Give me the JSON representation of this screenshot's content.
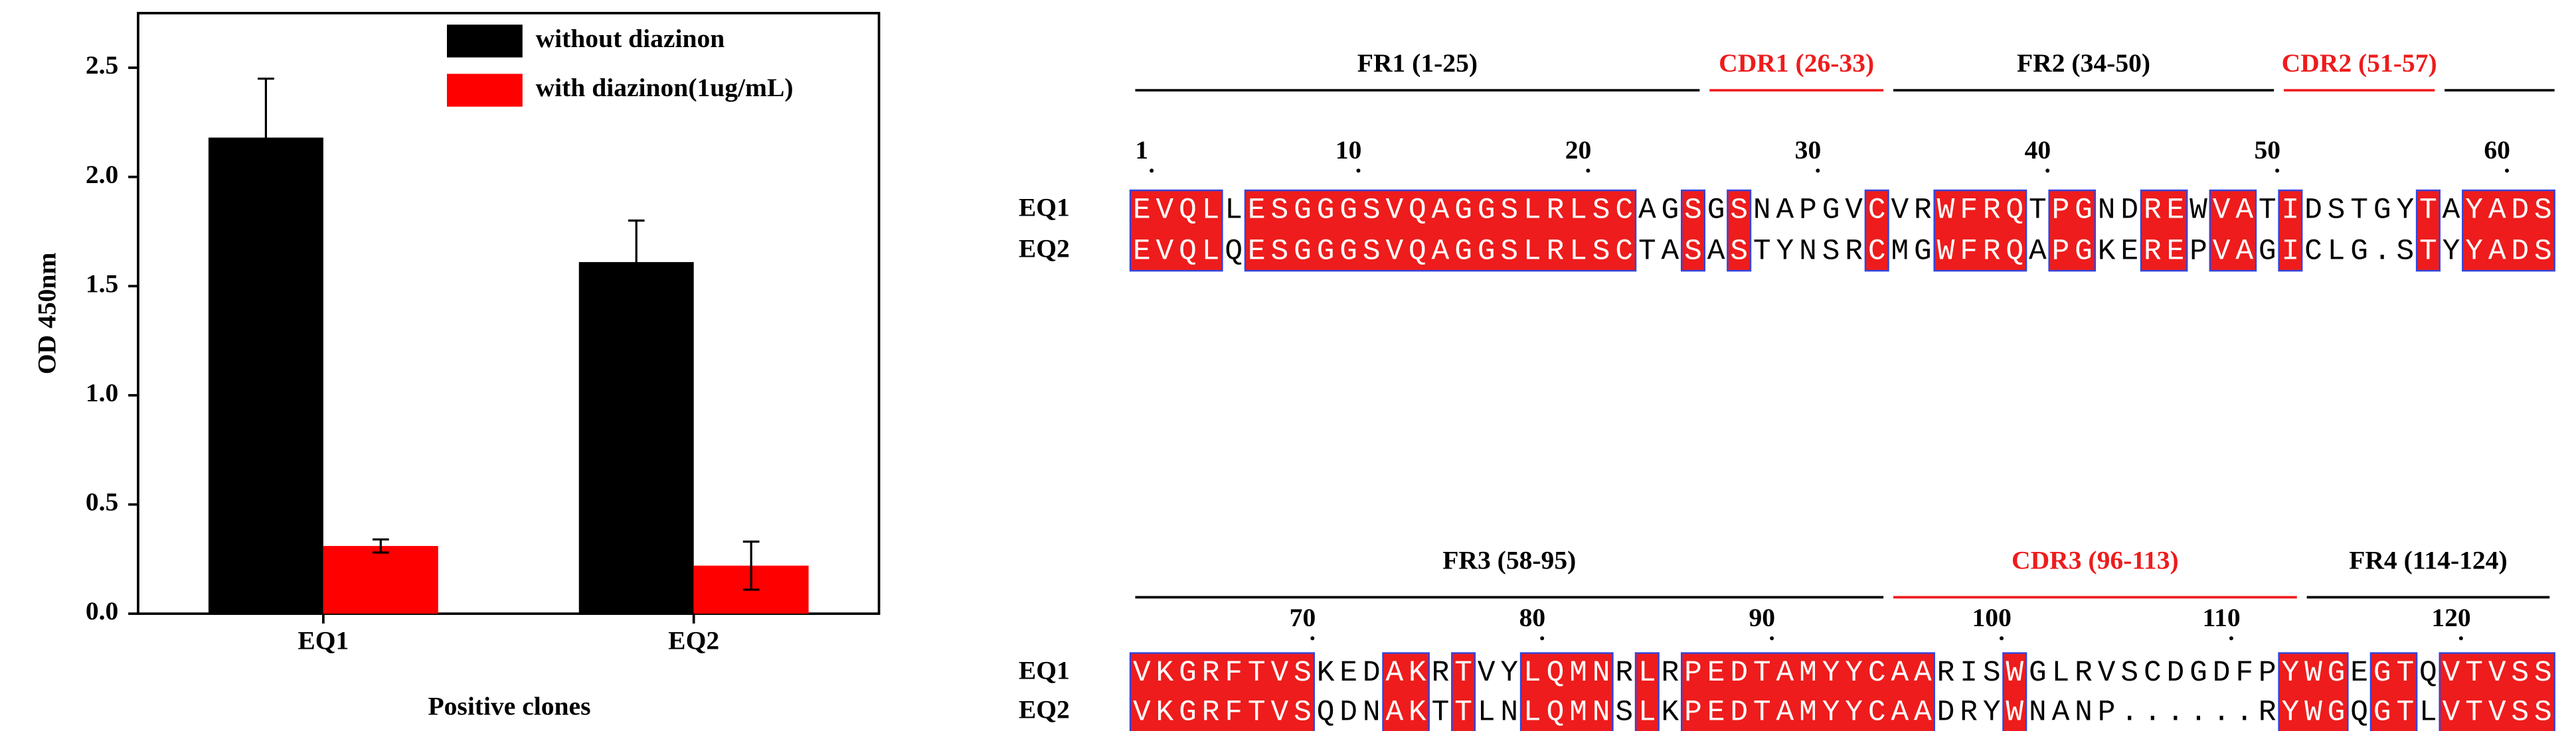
{
  "chart_data": {
    "type": "bar",
    "x_label": "Positive clones",
    "y_label": "OD 450nm",
    "categories": [
      "EQ1",
      "EQ2"
    ],
    "series": [
      {
        "name": "without diazinon",
        "color": "#000000",
        "values": [
          2.18,
          1.61
        ],
        "errors": [
          0.27,
          0.19
        ]
      },
      {
        "name": "with diazinon(1ug/mL)",
        "color": "#ff0000",
        "values": [
          0.31,
          0.22
        ],
        "errors": [
          0.03,
          0.11
        ]
      }
    ],
    "ylim": [
      0,
      2.75
    ],
    "yticks": [
      {
        "value": 0,
        "label": "0.0"
      },
      0.5,
      {
        "value": 1,
        "label": "1.0"
      },
      1.5,
      {
        "value": 2,
        "label": "2.0"
      },
      2.5
    ],
    "legend": "upper right"
  },
  "alignment": {
    "highlight_color": "#ee1c1c",
    "box_color": "#3344dd",
    "blocks": [
      {
        "regions": [
          {
            "label": "FR1 (1-25)",
            "color": "#000000"
          },
          {
            "label": "CDR1 (26-33)",
            "color": "#ee1c1c"
          },
          {
            "label": "FR2 (34-50)",
            "color": "#000000"
          },
          {
            "label": "CDR2 (51-57)",
            "color": "#ee1c1c"
          }
        ],
        "positions": [
          1,
          10,
          20,
          30,
          40,
          50,
          60
        ],
        "sequences": [
          {
            "name": "EQ1",
            "residues": "EVQLLESGGGSVQAGGSLRLSCAGSGSNAPGVCVRWFRQTPGNDREWVATIDSTGYTAYADS"
          },
          {
            "name": "EQ2",
            "residues": "EVQLQESGGGSVQAGGSLRLSCTASASTYNSRCMGWFRQAPGKEREPVAGICLG.STYYADS"
          }
        ]
      },
      {
        "regions": [
          {
            "label": "FR3 (58-95)",
            "color": "#000000"
          },
          {
            "label": "CDR3 (96-113)",
            "color": "#ee1c1c"
          },
          {
            "label": "FR4 (114-124)",
            "color": "#000000"
          }
        ],
        "positions": [
          70,
          80,
          90,
          100,
          110,
          120
        ],
        "sequences": [
          {
            "name": "EQ1",
            "residues": "VKGRFTVSKEDAKRTVYLQMNRLRPEDTAMYYCAARISWGLRVSCDGDFPYWGEGTQVTVSS"
          },
          {
            "name": "EQ2",
            "residues": "VKGRFTVSQDNAKTTLNLQMNSLKPEDTAMYYCAADRYWNANP......RYWGQGTLVTVSS"
          }
        ]
      }
    ]
  }
}
